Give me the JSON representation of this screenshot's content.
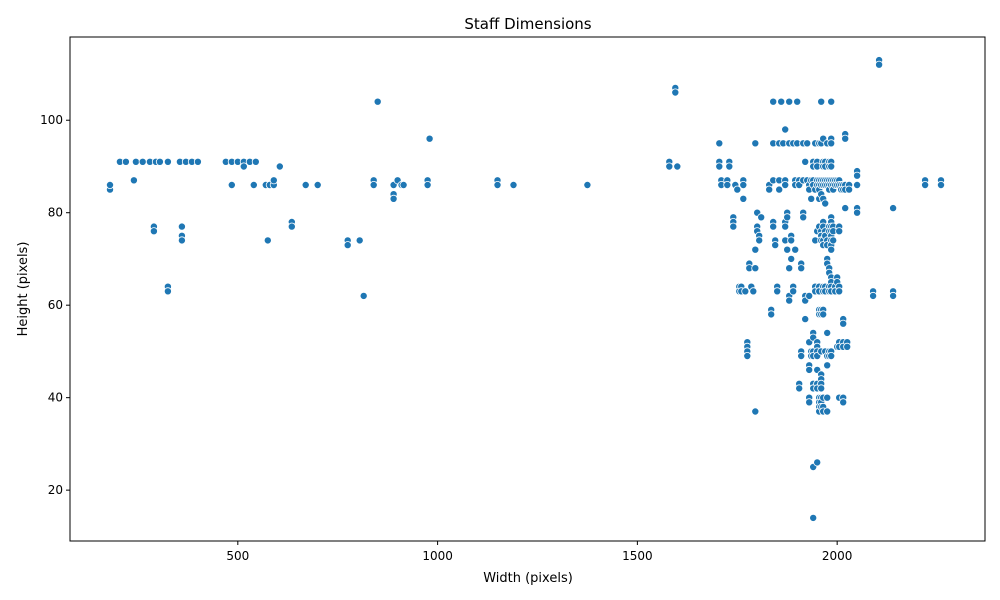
{
  "chart_data": {
    "type": "scatter",
    "title": "Staff Dimensions",
    "xlabel": "Width (pixels)",
    "ylabel": "Height (pixels)",
    "xlim": [
      80,
      2370
    ],
    "ylim": [
      9,
      118
    ],
    "xticks": [
      500,
      1000,
      1500,
      2000
    ],
    "yticks": [
      20,
      40,
      60,
      80,
      100
    ],
    "grid": false,
    "legend": "none",
    "marker_color": "#1f77b4",
    "points": [
      [
        180,
        85
      ],
      [
        180,
        86
      ],
      [
        205,
        91
      ],
      [
        220,
        91
      ],
      [
        240,
        87
      ],
      [
        245,
        91
      ],
      [
        262,
        91
      ],
      [
        280,
        91
      ],
      [
        295,
        91
      ],
      [
        305,
        91
      ],
      [
        325,
        91
      ],
      [
        290,
        77
      ],
      [
        290,
        76
      ],
      [
        360,
        77
      ],
      [
        360,
        75
      ],
      [
        360,
        74
      ],
      [
        325,
        64
      ],
      [
        325,
        63
      ],
      [
        355,
        91
      ],
      [
        370,
        91
      ],
      [
        385,
        91
      ],
      [
        400,
        91
      ],
      [
        470,
        91
      ],
      [
        485,
        91
      ],
      [
        500,
        91
      ],
      [
        515,
        91
      ],
      [
        515,
        90
      ],
      [
        530,
        91
      ],
      [
        545,
        91
      ],
      [
        485,
        86
      ],
      [
        540,
        86
      ],
      [
        570,
        86
      ],
      [
        580,
        86
      ],
      [
        590,
        86
      ],
      [
        590,
        87
      ],
      [
        605,
        90
      ],
      [
        575,
        74
      ],
      [
        635,
        78
      ],
      [
        635,
        77
      ],
      [
        670,
        86
      ],
      [
        700,
        86
      ],
      [
        775,
        74
      ],
      [
        775,
        73
      ],
      [
        805,
        74
      ],
      [
        815,
        62
      ],
      [
        840,
        87
      ],
      [
        840,
        86
      ],
      [
        850,
        104
      ],
      [
        890,
        86
      ],
      [
        890,
        84
      ],
      [
        890,
        83
      ],
      [
        900,
        87
      ],
      [
        910,
        86
      ],
      [
        915,
        86
      ],
      [
        975,
        87
      ],
      [
        975,
        86
      ],
      [
        980,
        96
      ],
      [
        1150,
        87
      ],
      [
        1150,
        86
      ],
      [
        1190,
        86
      ],
      [
        1375,
        86
      ],
      [
        1580,
        91
      ],
      [
        1580,
        90
      ],
      [
        1595,
        107
      ],
      [
        1595,
        106
      ],
      [
        1600,
        90
      ],
      [
        1705,
        95
      ],
      [
        1705,
        91
      ],
      [
        1705,
        90
      ],
      [
        1710,
        87
      ],
      [
        1710,
        86
      ],
      [
        1725,
        87
      ],
      [
        1725,
        86
      ],
      [
        1730,
        91
      ],
      [
        1730,
        90
      ],
      [
        1740,
        79
      ],
      [
        1740,
        78
      ],
      [
        1740,
        77
      ],
      [
        1745,
        86
      ],
      [
        1750,
        85
      ],
      [
        1755,
        64
      ],
      [
        1755,
        63
      ],
      [
        1760,
        64
      ],
      [
        1760,
        63
      ],
      [
        1765,
        87
      ],
      [
        1765,
        86
      ],
      [
        1765,
        83
      ],
      [
        1770,
        63
      ],
      [
        1775,
        52
      ],
      [
        1775,
        51
      ],
      [
        1775,
        50
      ],
      [
        1775,
        49
      ],
      [
        1780,
        69
      ],
      [
        1780,
        68
      ],
      [
        1785,
        64
      ],
      [
        1790,
        63
      ],
      [
        1795,
        37
      ],
      [
        1795,
        72
      ],
      [
        1795,
        68
      ],
      [
        1795,
        95
      ],
      [
        1800,
        80
      ],
      [
        1800,
        77
      ],
      [
        1800,
        76
      ],
      [
        1805,
        75
      ],
      [
        1805,
        74
      ],
      [
        1810,
        79
      ],
      [
        1830,
        86
      ],
      [
        1830,
        85
      ],
      [
        1835,
        59
      ],
      [
        1835,
        58
      ],
      [
        1840,
        104
      ],
      [
        1840,
        95
      ],
      [
        1840,
        87
      ],
      [
        1840,
        78
      ],
      [
        1840,
        77
      ],
      [
        1845,
        74
      ],
      [
        1845,
        73
      ],
      [
        1850,
        64
      ],
      [
        1850,
        63
      ],
      [
        1855,
        95
      ],
      [
        1855,
        87
      ],
      [
        1855,
        85
      ],
      [
        1860,
        104
      ],
      [
        1865,
        95
      ],
      [
        1870,
        98
      ],
      [
        1870,
        87
      ],
      [
        1870,
        86
      ],
      [
        1870,
        78
      ],
      [
        1870,
        77
      ],
      [
        1870,
        74
      ],
      [
        1875,
        80
      ],
      [
        1875,
        79
      ],
      [
        1875,
        72
      ],
      [
        1880,
        104
      ],
      [
        1880,
        95
      ],
      [
        1880,
        68
      ],
      [
        1880,
        62
      ],
      [
        1880,
        61
      ],
      [
        1885,
        75
      ],
      [
        1885,
        74
      ],
      [
        1885,
        70
      ],
      [
        1890,
        64
      ],
      [
        1890,
        63
      ],
      [
        1890,
        95
      ],
      [
        1895,
        87
      ],
      [
        1895,
        86
      ],
      [
        1895,
        72
      ],
      [
        1900,
        104
      ],
      [
        1900,
        95
      ],
      [
        1905,
        87
      ],
      [
        1905,
        86
      ],
      [
        1905,
        43
      ],
      [
        1905,
        42
      ],
      [
        1910,
        50
      ],
      [
        1910,
        49
      ],
      [
        1910,
        69
      ],
      [
        1910,
        68
      ],
      [
        1915,
        95
      ],
      [
        1915,
        87
      ],
      [
        1915,
        80
      ],
      [
        1915,
        79
      ],
      [
        1920,
        62
      ],
      [
        1920,
        61
      ],
      [
        1920,
        57
      ],
      [
        1920,
        91
      ],
      [
        1925,
        95
      ],
      [
        1925,
        87
      ],
      [
        1930,
        86
      ],
      [
        1930,
        85
      ],
      [
        1930,
        62
      ],
      [
        1930,
        52
      ],
      [
        1930,
        47
      ],
      [
        1930,
        46
      ],
      [
        1930,
        40
      ],
      [
        1930,
        39
      ],
      [
        1935,
        83
      ],
      [
        1935,
        87
      ],
      [
        1935,
        50
      ],
      [
        1935,
        49
      ],
      [
        1940,
        91
      ],
      [
        1940,
        90
      ],
      [
        1940,
        87
      ],
      [
        1940,
        86
      ],
      [
        1940,
        54
      ],
      [
        1940,
        53
      ],
      [
        1940,
        50
      ],
      [
        1940,
        49
      ],
      [
        1940,
        43
      ],
      [
        1940,
        42
      ],
      [
        1940,
        25
      ],
      [
        1940,
        14
      ],
      [
        1945,
        95
      ],
      [
        1945,
        85
      ],
      [
        1945,
        64
      ],
      [
        1945,
        63
      ],
      [
        1945,
        74
      ],
      [
        1950,
        91
      ],
      [
        1950,
        90
      ],
      [
        1950,
        87
      ],
      [
        1950,
        86
      ],
      [
        1950,
        76
      ],
      [
        1950,
        52
      ],
      [
        1950,
        51
      ],
      [
        1950,
        50
      ],
      [
        1950,
        49
      ],
      [
        1950,
        46
      ],
      [
        1950,
        43
      ],
      [
        1950,
        42
      ],
      [
        1950,
        26
      ],
      [
        1955,
        95
      ],
      [
        1955,
        87
      ],
      [
        1955,
        86
      ],
      [
        1955,
        85
      ],
      [
        1955,
        83
      ],
      [
        1955,
        77
      ],
      [
        1955,
        64
      ],
      [
        1955,
        63
      ],
      [
        1955,
        59
      ],
      [
        1955,
        58
      ],
      [
        1955,
        40
      ],
      [
        1955,
        39
      ],
      [
        1955,
        38
      ],
      [
        1955,
        37
      ],
      [
        1960,
        104
      ],
      [
        1960,
        95
      ],
      [
        1960,
        87
      ],
      [
        1960,
        86
      ],
      [
        1960,
        84
      ],
      [
        1960,
        76
      ],
      [
        1960,
        75
      ],
      [
        1960,
        74
      ],
      [
        1960,
        59
      ],
      [
        1960,
        58
      ],
      [
        1960,
        50
      ],
      [
        1960,
        45
      ],
      [
        1960,
        44
      ],
      [
        1960,
        43
      ],
      [
        1960,
        42
      ],
      [
        1960,
        40
      ],
      [
        1960,
        39
      ],
      [
        1960,
        38
      ],
      [
        1965,
        96
      ],
      [
        1965,
        91
      ],
      [
        1965,
        90
      ],
      [
        1965,
        87
      ],
      [
        1965,
        86
      ],
      [
        1965,
        83
      ],
      [
        1965,
        78
      ],
      [
        1965,
        77
      ],
      [
        1965,
        74
      ],
      [
        1965,
        73
      ],
      [
        1965,
        64
      ],
      [
        1965,
        63
      ],
      [
        1965,
        59
      ],
      [
        1965,
        58
      ],
      [
        1965,
        40
      ],
      [
        1965,
        38
      ],
      [
        1965,
        37
      ],
      [
        1970,
        91
      ],
      [
        1970,
        90
      ],
      [
        1970,
        87
      ],
      [
        1970,
        86
      ],
      [
        1970,
        82
      ],
      [
        1970,
        76
      ],
      [
        1970,
        75
      ],
      [
        1970,
        64
      ],
      [
        1970,
        63
      ],
      [
        1970,
        50
      ],
      [
        1975,
        95
      ],
      [
        1975,
        87
      ],
      [
        1975,
        86
      ],
      [
        1975,
        74
      ],
      [
        1975,
        73
      ],
      [
        1975,
        70
      ],
      [
        1975,
        69
      ],
      [
        1975,
        54
      ],
      [
        1975,
        49
      ],
      [
        1975,
        47
      ],
      [
        1975,
        40
      ],
      [
        1975,
        37
      ],
      [
        1980,
        91
      ],
      [
        1980,
        90
      ],
      [
        1980,
        87
      ],
      [
        1980,
        86
      ],
      [
        1980,
        85
      ],
      [
        1980,
        77
      ],
      [
        1980,
        76
      ],
      [
        1980,
        68
      ],
      [
        1980,
        67
      ],
      [
        1980,
        64
      ],
      [
        1980,
        63
      ],
      [
        1980,
        50
      ],
      [
        1980,
        49
      ],
      [
        1985,
        104
      ],
      [
        1985,
        96
      ],
      [
        1985,
        95
      ],
      [
        1985,
        91
      ],
      [
        1985,
        90
      ],
      [
        1985,
        87
      ],
      [
        1985,
        86
      ],
      [
        1985,
        79
      ],
      [
        1985,
        78
      ],
      [
        1985,
        77
      ],
      [
        1985,
        76
      ],
      [
        1985,
        75
      ],
      [
        1985,
        74
      ],
      [
        1985,
        73
      ],
      [
        1985,
        72
      ],
      [
        1985,
        66
      ],
      [
        1985,
        65
      ],
      [
        1985,
        64
      ],
      [
        1985,
        63
      ],
      [
        1985,
        50
      ],
      [
        1985,
        49
      ],
      [
        1990,
        87
      ],
      [
        1990,
        86
      ],
      [
        1990,
        85
      ],
      [
        1990,
        77
      ],
      [
        1990,
        76
      ],
      [
        1990,
        74
      ],
      [
        1995,
        87
      ],
      [
        1995,
        86
      ],
      [
        1995,
        64
      ],
      [
        1995,
        63
      ],
      [
        2000,
        87
      ],
      [
        2000,
        86
      ],
      [
        2000,
        66
      ],
      [
        2000,
        65
      ],
      [
        2000,
        51
      ],
      [
        2005,
        87
      ],
      [
        2005,
        86
      ],
      [
        2005,
        77
      ],
      [
        2005,
        76
      ],
      [
        2005,
        64
      ],
      [
        2005,
        63
      ],
      [
        2005,
        52
      ],
      [
        2005,
        51
      ],
      [
        2005,
        40
      ],
      [
        2010,
        86
      ],
      [
        2010,
        85
      ],
      [
        2015,
        86
      ],
      [
        2015,
        85
      ],
      [
        2015,
        57
      ],
      [
        2015,
        56
      ],
      [
        2015,
        52
      ],
      [
        2015,
        51
      ],
      [
        2015,
        40
      ],
      [
        2015,
        39
      ],
      [
        2020,
        97
      ],
      [
        2020,
        96
      ],
      [
        2020,
        81
      ],
      [
        2020,
        86
      ],
      [
        2020,
        85
      ],
      [
        2025,
        52
      ],
      [
        2025,
        51
      ],
      [
        2030,
        86
      ],
      [
        2030,
        85
      ],
      [
        2050,
        89
      ],
      [
        2050,
        88
      ],
      [
        2050,
        86
      ],
      [
        2050,
        81
      ],
      [
        2050,
        80
      ],
      [
        2090,
        63
      ],
      [
        2090,
        62
      ],
      [
        2105,
        113
      ],
      [
        2105,
        112
      ],
      [
        2140,
        81
      ],
      [
        2140,
        63
      ],
      [
        2140,
        62
      ],
      [
        2220,
        87
      ],
      [
        2220,
        86
      ],
      [
        2260,
        87
      ],
      [
        2260,
        86
      ]
    ]
  }
}
